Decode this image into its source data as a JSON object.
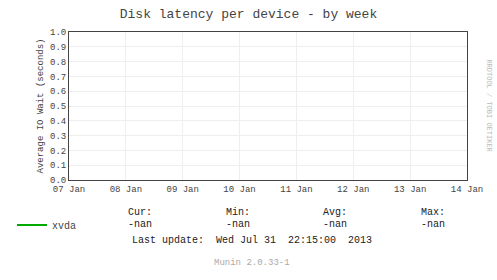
{
  "chart_data": {
    "type": "line",
    "title": "Disk latency per device - by week",
    "y_label": "Average IO Wait (seconds)",
    "categories": [
      "07 Jan",
      "08 Jan",
      "09 Jan",
      "10 Jan",
      "11 Jan",
      "12 Jan",
      "13 Jan",
      "14 Jan"
    ],
    "series": [
      {
        "name": "xvda",
        "color": "#00aa00",
        "values": [
          null,
          null,
          null,
          null,
          null,
          null,
          null,
          null
        ]
      }
    ],
    "ylim": [
      0,
      1
    ],
    "yticks": [
      {
        "value": 0,
        "label": "0.0"
      },
      0.1,
      0.2,
      0.3,
      0.4,
      0.5,
      0.6,
      0.7,
      0.8,
      0.9,
      {
        "value": 1,
        "label": "1.0"
      }
    ],
    "grid": true,
    "legend": "bottom-left",
    "annotations": [
      "Cur:",
      "Min:",
      "Avg:",
      "Max:",
      "-nan",
      "-nan",
      "-nan",
      "-nan",
      "Last update:  Wed Jul 31  22:15:00  2013",
      "Munin 2.0.33-1",
      "RRDTOOL / TOBI OETIKER"
    ]
  }
}
